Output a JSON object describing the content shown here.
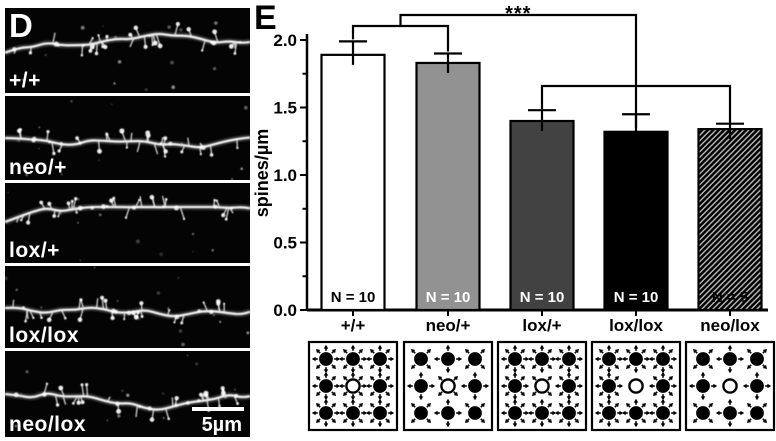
{
  "figure": {
    "panel_d": {
      "panel_letter": "D",
      "micrographs": [
        {
          "genotype": "+/+"
        },
        {
          "genotype": "neo/+"
        },
        {
          "genotype": "lox/+"
        },
        {
          "genotype": "lox/lox"
        },
        {
          "genotype": "neo/lox"
        }
      ],
      "scale_bar_label": "5µm"
    },
    "panel_e": {
      "panel_letter": "E"
    }
  },
  "chart_data": {
    "type": "bar",
    "title": "",
    "ylabel": "spines/µm",
    "xlabel": "",
    "ylim": [
      0,
      2.0
    ],
    "ytick_labels": [
      "0.0",
      "0.5",
      "1.0",
      "1.5",
      "2.0"
    ],
    "ytick_major_step": 0.5,
    "ytick_minor_step": 0.25,
    "grid": false,
    "legend_position": "none",
    "categories": [
      "+/+",
      "neo/+",
      "lox/+",
      "lox/lox",
      "neo/lox"
    ],
    "values": [
      1.89,
      1.83,
      1.4,
      1.32,
      1.34
    ],
    "errors_upper": [
      0.1,
      0.07,
      0.08,
      0.13,
      0.04
    ],
    "n_labels": [
      "N = 10",
      "N = 10",
      "N = 10",
      "N = 10",
      "N = 5"
    ],
    "bar_fills": [
      "#ffffff",
      "#929292",
      "#424242",
      "#000000",
      "hatch-black-diagonal"
    ],
    "n_label_colors": [
      "#000000",
      "#ffffff",
      "#ffffff",
      "#ffffff",
      "#000000"
    ],
    "significance": {
      "label": "***",
      "group_a": [
        "+/+",
        "neo/+"
      ],
      "group_b": [
        "lox/+",
        "lox/lox",
        "neo/lox"
      ]
    }
  },
  "schematics": {
    "boxes": [
      {
        "under": "+/+",
        "outer_pattern": "arrows-8-all",
        "center_pattern": "arrows-8-all",
        "center_open": true
      },
      {
        "under": "neo/+",
        "outer_pattern": "arrows-4-alt",
        "center_pattern": "arrows-4-diag",
        "center_open": true
      },
      {
        "under": "lox/+",
        "outer_pattern": "arrows-8-all",
        "center_pattern": "arrows-4-diag",
        "center_open": true
      },
      {
        "under": "lox/lox",
        "outer_pattern": "arrows-8-all",
        "center_pattern": "none",
        "center_open": true
      },
      {
        "under": "neo/lox",
        "outer_pattern": "arrows-4-alt",
        "center_pattern": "none",
        "center_open": true
      }
    ]
  }
}
